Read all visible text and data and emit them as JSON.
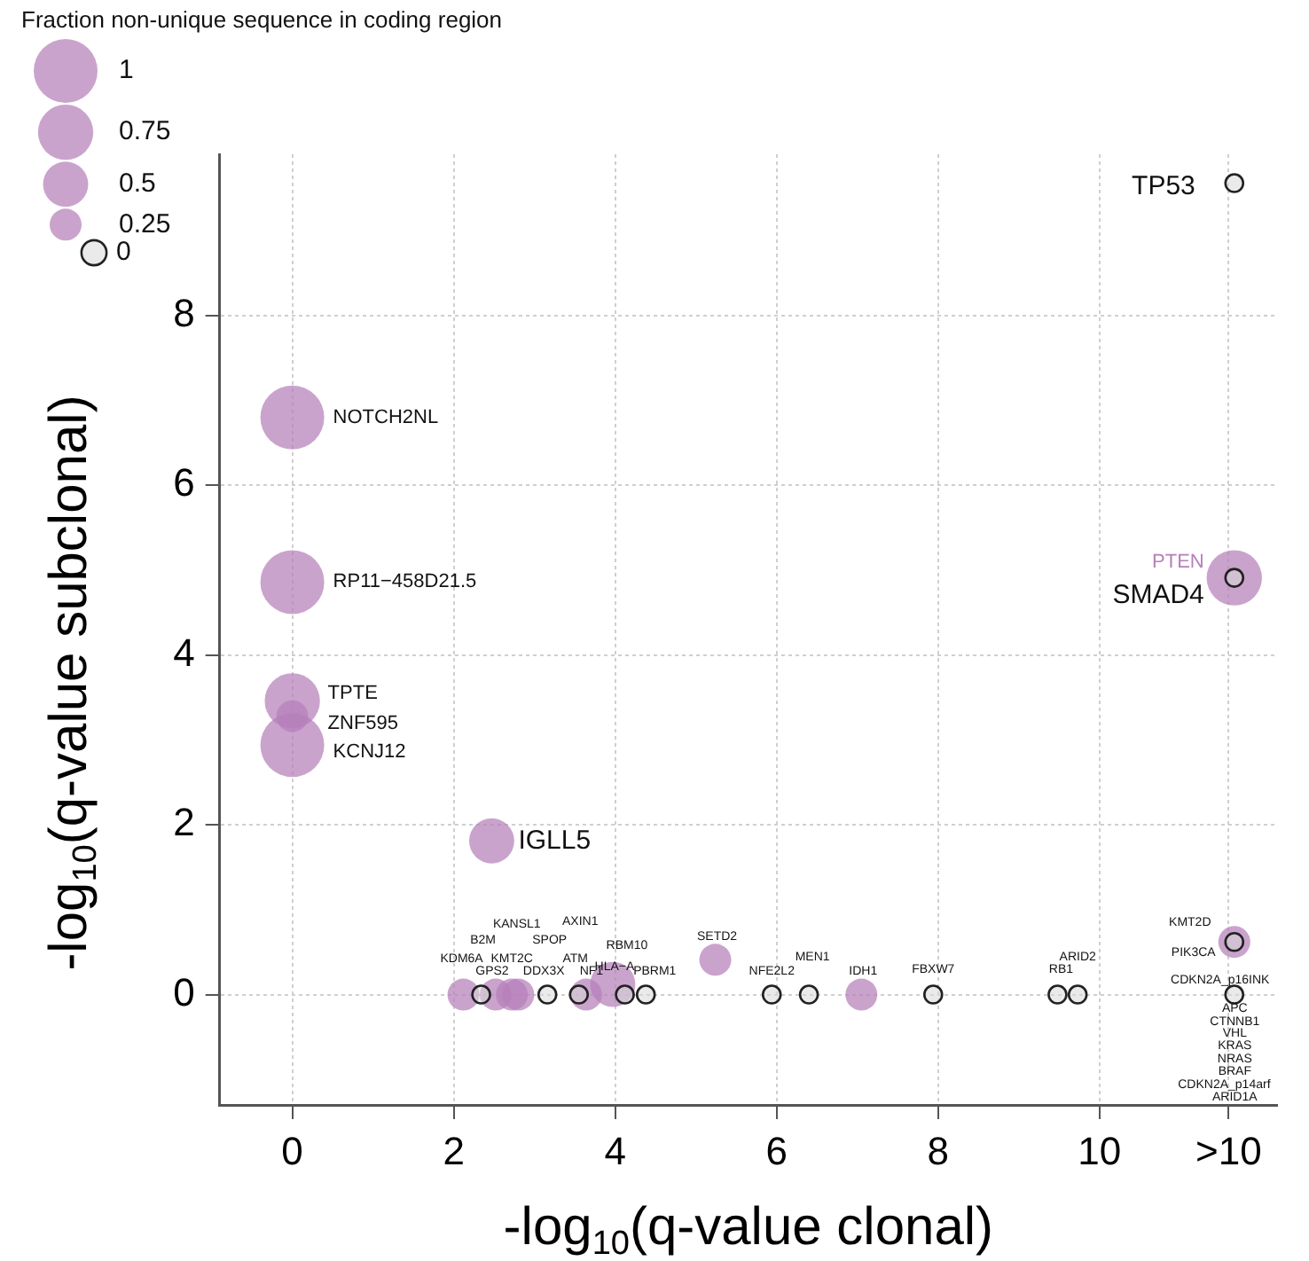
{
  "chart_data": {
    "type": "bubble",
    "xlabel": "-log$_{10}$(q-value clonal)",
    "ylabel": "-log$_{10}$(q-value subclonal)",
    "legend_title": "Fraction non-unique sequence in coding region",
    "legend": "top left",
    "size_legend": [
      1,
      0.75,
      0.5,
      0.25
    ],
    "xlim": [
      -0.9,
      12.2
    ],
    "xticks": [
      0,
      2,
      4,
      6,
      8,
      10,
      {
        "value": 11.6,
        "label": ">10"
      }
    ],
    "ylim": [
      -1.3,
      9.9
    ],
    "yticks": [
      0,
      2,
      4,
      6,
      8
    ],
    "grid": true,
    "marker": "circle",
    "series": [
      {
        "color": "#b67fba",
        "x": [
          0,
          0,
          0,
          0,
          0,
          2.47,
          2.12,
          2.52,
          2.72,
          2.8,
          3.64,
          3.97,
          5.24,
          7.05,
          11.67,
          11.67
        ],
        "values": [
          6.8,
          4.86,
          3.46,
          3.28,
          2.94,
          1.81,
          0,
          0,
          0,
          0,
          0,
          0.12,
          0.41,
          0,
          0.62,
          4.91
        ],
        "sizes": [
          1,
          1,
          0.75,
          0.25,
          1,
          0.5,
          0.25,
          0.25,
          0.25,
          0.25,
          0.25,
          0.5,
          0.25,
          0.25,
          0.25,
          0.75
        ]
      },
      {
        "type": "scatter",
        "name": "0",
        "color": "#d9d9d9",
        "x": [
          2.34,
          3.16,
          3.55,
          4.12,
          4.38,
          5.94,
          6.4,
          7.94,
          9.48,
          9.73,
          11.67,
          11.67,
          11.67,
          11.67
        ],
        "values": [
          0,
          0,
          0,
          0,
          0,
          0,
          0,
          0,
          0,
          0,
          0,
          0.62,
          4.91,
          9.56
        ]
      }
    ],
    "annotations": [
      {
        "text": "TP53",
        "x": 11.67,
        "y": 9.56
      },
      {
        "text": "NOTCH2NL",
        "x": 0,
        "y": 6.8
      },
      {
        "text": "RP11−458D21.5",
        "x": 0,
        "y": 4.86
      },
      {
        "text": "PTEN",
        "x": 11.67,
        "y": 4.91
      },
      {
        "text": "SMAD4",
        "x": 11.67,
        "y": 4.91
      },
      {
        "text": "TPTE",
        "x": 0,
        "y": 3.46
      },
      {
        "text": "ZNF595",
        "x": 0,
        "y": 3.28
      },
      {
        "text": "KCNJ12",
        "x": 0,
        "y": 2.94
      },
      {
        "text": "IGLL5",
        "x": 2.47,
        "y": 1.81
      },
      {
        "text": "KDM6A",
        "x": 2.12,
        "y": 0
      },
      "B2M",
      "KANSL1",
      "AXIN1",
      "SPOP",
      {
        "text": "KMT2C",
        "x": 2.72,
        "y": 0
      },
      {
        "text": "RBM10",
        "x": 3.97,
        "y": 0.12
      },
      {
        "text": "ATM",
        "x": 3.55,
        "y": 0
      },
      {
        "text": "HLA−A",
        "x": 3.97,
        "y": 0.12
      },
      {
        "text": "GPS2",
        "x": 2.52,
        "y": 0
      },
      {
        "text": "DDX3X",
        "x": 3.16,
        "y": 0
      },
      {
        "text": "NF1",
        "x": 3.64,
        "y": 0
      },
      {
        "text": "PBRM1",
        "x": 4.38,
        "y": 0
      },
      {
        "text": "SETD2",
        "x": 5.24,
        "y": 0.41
      },
      {
        "text": "NFE2L2",
        "x": 5.94,
        "y": 0
      },
      {
        "text": "MEN1",
        "x": 6.4,
        "y": 0
      },
      {
        "text": "IDH1",
        "x": 7.05,
        "y": 0
      },
      {
        "text": "FBXW7",
        "x": 7.94,
        "y": 0
      },
      {
        "text": "ARID2",
        "x": 9.73,
        "y": 0
      },
      {
        "text": "RB1",
        "x": 9.48,
        "y": 0
      },
      {
        "text": "KMT2D",
        "x": 11.67,
        "y": 0.62
      },
      {
        "text": "PIK3CA",
        "x": 11.67,
        "y": 0.62
      },
      {
        "text": "CDKN2A_p16INK",
        "x": 11.67,
        "y": 0
      },
      "APC",
      "CTNNB1",
      "VHL",
      "KRAS",
      "NRAS",
      "BRAF",
      "CDKN2A_p14arf",
      "ARID1A"
    ]
  }
}
